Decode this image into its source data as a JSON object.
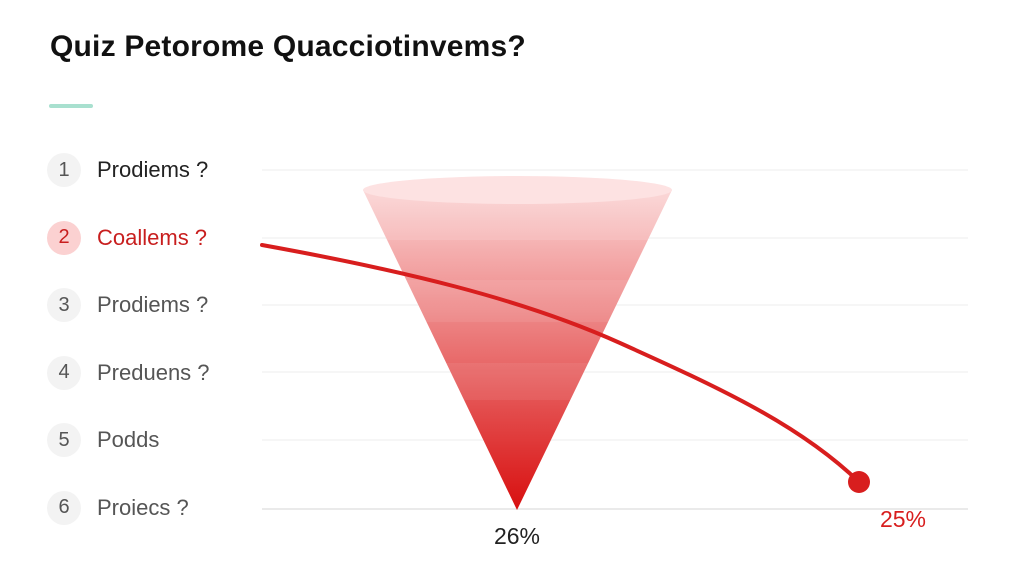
{
  "title": "Quiz Petorome Quacciotinvems?",
  "items": [
    {
      "number": "1",
      "label": "Prodiems ?"
    },
    {
      "number": "2",
      "label": "Coallems ?"
    },
    {
      "number": "3",
      "label": "Prodiems ?"
    },
    {
      "number": "4",
      "label": "Preduens ?"
    },
    {
      "number": "5",
      "label": "Podds"
    },
    {
      "number": "6",
      "label": "Proiecs ?"
    }
  ],
  "active_item": 2,
  "colors": {
    "accent": "#d81e1e",
    "accent_light": "#fbd1d1",
    "title_underline": "#a8e0cf",
    "funnel_top": "#fbd3d3",
    "funnel_bottom": "#d80f0f"
  },
  "chart_data": {
    "type": "funnel",
    "funnel_label": "26%",
    "line": {
      "end_label": "25%",
      "has_end_marker": true
    },
    "grid": true
  }
}
